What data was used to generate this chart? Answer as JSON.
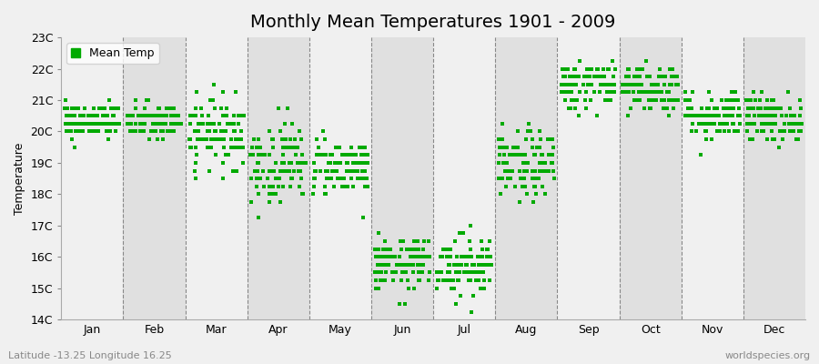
{
  "title": "Monthly Mean Temperatures 1901 - 2009",
  "ylabel": "Temperature",
  "ylim": [
    14,
    23
  ],
  "yticks": [
    14,
    15,
    16,
    17,
    18,
    19,
    20,
    21,
    22,
    23
  ],
  "ytick_labels": [
    "14C",
    "15C",
    "16C",
    "17C",
    "18C",
    "19C",
    "20C",
    "21C",
    "22C",
    "23C"
  ],
  "months": [
    "Jan",
    "Feb",
    "Mar",
    "Apr",
    "May",
    "Jun",
    "Jul",
    "Aug",
    "Sep",
    "Oct",
    "Nov",
    "Dec"
  ],
  "monthly_means": [
    20.3,
    20.3,
    20.0,
    19.0,
    18.9,
    15.75,
    15.75,
    18.9,
    21.5,
    21.4,
    20.5,
    20.4
  ],
  "monthly_stds": [
    0.28,
    0.3,
    0.55,
    0.65,
    0.45,
    0.4,
    0.5,
    0.55,
    0.4,
    0.42,
    0.4,
    0.38
  ],
  "n_years": 109,
  "marker_color": "#00aa00",
  "marker": "s",
  "marker_size": 3,
  "bg_light": "#f0f0f0",
  "bg_dark": "#e0e0e0",
  "legend_label": "Mean Temp",
  "subtitle_left": "Latitude -13.25 Longitude 16.25",
  "subtitle_right": "worldspecies.org",
  "title_fontsize": 14,
  "axis_label_fontsize": 9,
  "tick_fontsize": 9,
  "subtitle_fontsize": 8
}
